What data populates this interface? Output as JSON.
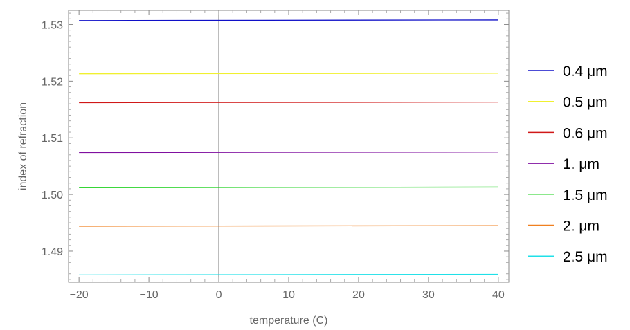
{
  "chart_data": {
    "type": "line",
    "title": "",
    "xlabel": "temperature (C)",
    "ylabel": "index of refraction",
    "xlim": [
      -21.5,
      41.5
    ],
    "ylim": [
      1.4845,
      1.5325
    ],
    "x_ticks": [
      {
        "value": -20,
        "label": "−20"
      },
      {
        "value": -10,
        "label": "−10"
      },
      {
        "value": 0,
        "label": "0"
      },
      {
        "value": 10,
        "label": "10"
      },
      {
        "value": 20,
        "label": "20"
      },
      {
        "value": 30,
        "label": "30"
      },
      {
        "value": 40,
        "label": "40"
      }
    ],
    "y_ticks": [
      {
        "value": 1.49,
        "label": "1.49"
      },
      {
        "value": 1.5,
        "label": "1.50"
      },
      {
        "value": 1.51,
        "label": "1.51"
      },
      {
        "value": 1.52,
        "label": "1.52"
      },
      {
        "value": 1.53,
        "label": "1.53"
      }
    ],
    "x_range": [
      -20,
      40
    ],
    "grid": false,
    "legend_position": "right",
    "frame": true,
    "series": [
      {
        "name": "0.4 μm",
        "color": "#1010c8",
        "x": [
          -20,
          40
        ],
        "y": [
          1.5307,
          1.5308
        ]
      },
      {
        "name": "0.5 μm",
        "color": "#f0f030",
        "x": [
          -20,
          40
        ],
        "y": [
          1.5213,
          1.5214
        ]
      },
      {
        "name": "0.6 μm",
        "color": "#d01818",
        "x": [
          -20,
          40
        ],
        "y": [
          1.5162,
          1.5163
        ]
      },
      {
        "name": "1. μm",
        "color": "#8010a0",
        "x": [
          -20,
          40
        ],
        "y": [
          1.5074,
          1.5075
        ]
      },
      {
        "name": "1.5 μm",
        "color": "#18d018",
        "x": [
          -20,
          40
        ],
        "y": [
          1.5012,
          1.5013
        ]
      },
      {
        "name": "2. μm",
        "color": "#f08020",
        "x": [
          -20,
          40
        ],
        "y": [
          1.4944,
          1.4945
        ]
      },
      {
        "name": "2.5 μm",
        "color": "#20e0e8",
        "x": [
          -20,
          40
        ],
        "y": [
          1.4858,
          1.4859
        ]
      }
    ]
  }
}
